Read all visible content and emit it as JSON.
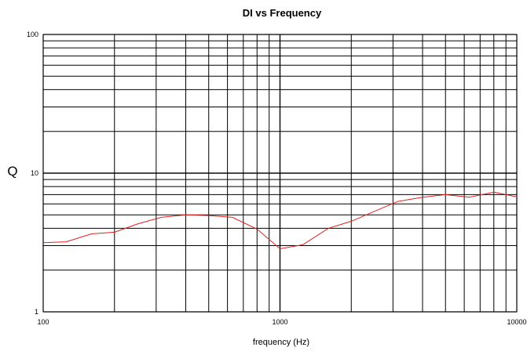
{
  "chart_data": {
    "type": "line",
    "title": "DI vs Frequency",
    "xlabel": "frequency (Hz)",
    "ylabel": "Q",
    "x_scale": "log",
    "y_scale": "log",
    "xlim": [
      100,
      10000
    ],
    "ylim": [
      1,
      100
    ],
    "x_tick_labels": [
      "100",
      "1000",
      "10000"
    ],
    "y_tick_labels": [
      "1",
      "10",
      "100"
    ],
    "grid": true,
    "legend": "none",
    "series": [
      {
        "color": "#e0201c",
        "x": [
          100,
          125,
          160,
          200,
          250,
          315,
          400,
          500,
          630,
          800,
          1000,
          1250,
          1600,
          2000,
          2500,
          3150,
          4000,
          5000,
          6300,
          8000,
          10000
        ],
        "y": [
          3.15,
          3.2,
          3.65,
          3.75,
          4.3,
          4.8,
          5.0,
          4.95,
          4.8,
          3.95,
          2.85,
          3.05,
          4.0,
          4.5,
          5.3,
          6.25,
          6.7,
          7.0,
          6.7,
          7.3,
          6.75
        ]
      }
    ]
  }
}
